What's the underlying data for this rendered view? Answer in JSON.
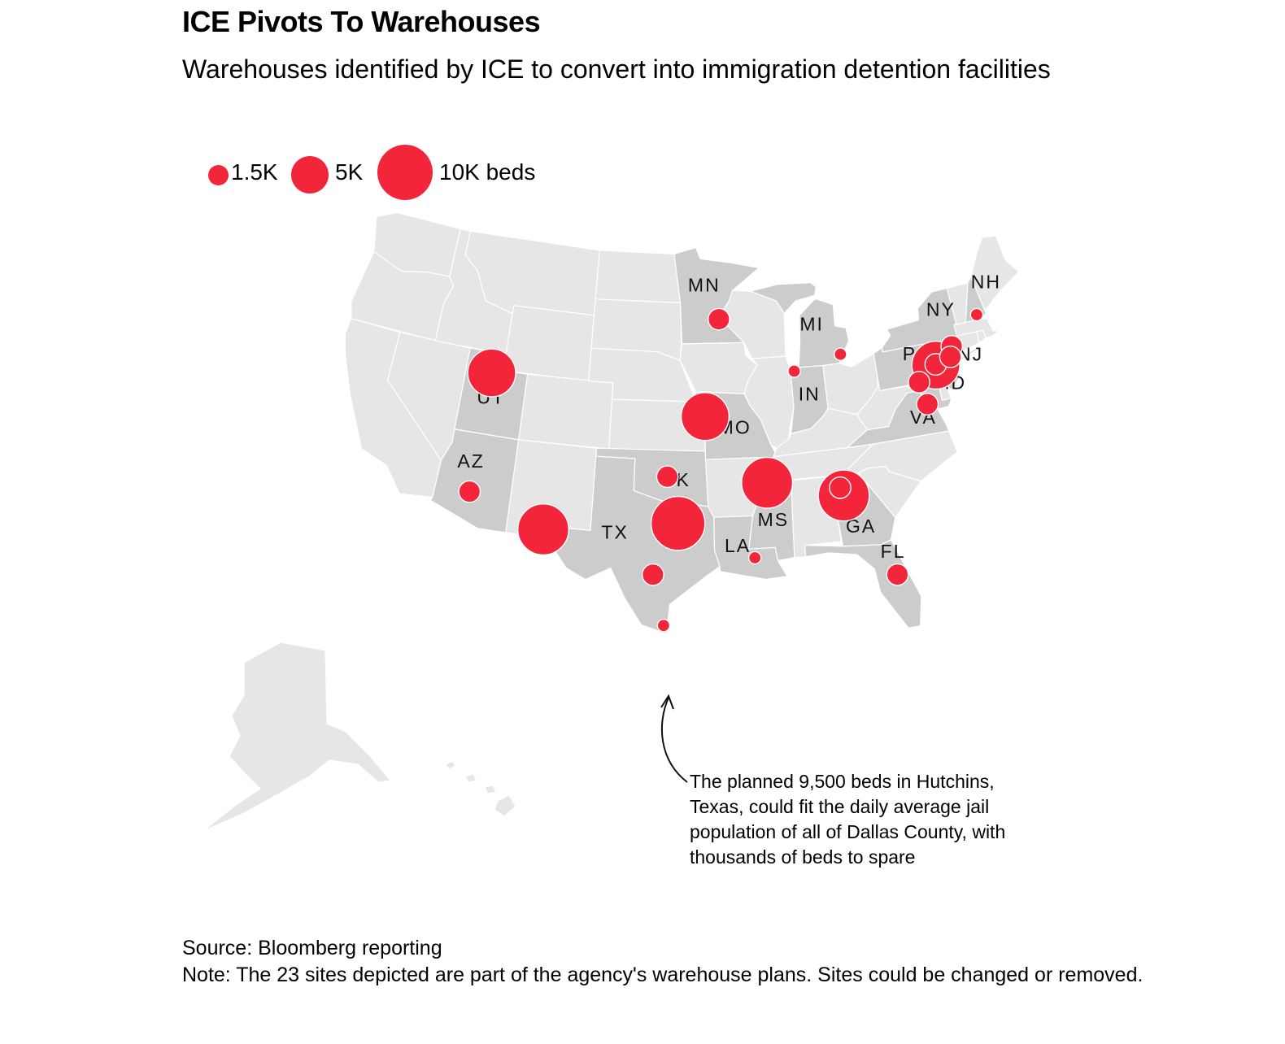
{
  "title": "ICE Pivots To Warehouses",
  "subtitle": "Warehouses identified by ICE to convert into immigration detention facilities",
  "legend": {
    "items": [
      {
        "label": "1.5K",
        "beds": 1500
      },
      {
        "label": "5K",
        "beds": 5000
      },
      {
        "label": "10K beds",
        "beds": 10000
      }
    ]
  },
  "colors": {
    "site": "#f2253a",
    "highlight_state": "#cccccc",
    "other_state": "#e6e6e6",
    "border": "#ffffff"
  },
  "highlighted_states": [
    "MN",
    "UT",
    "AZ",
    "TX",
    "OK",
    "MO",
    "LA",
    "MS",
    "GA",
    "FL",
    "IN",
    "MI",
    "PA",
    "NY",
    "NJ",
    "MD",
    "VA",
    "NH"
  ],
  "state_labels": [
    {
      "code": "MN",
      "text": "MN"
    },
    {
      "code": "UT",
      "text": "UT"
    },
    {
      "code": "AZ",
      "text": "AZ"
    },
    {
      "code": "TX",
      "text": "TX"
    },
    {
      "code": "OK",
      "text": "OK"
    },
    {
      "code": "MO",
      "text": "MO"
    },
    {
      "code": "LA",
      "text": "LA"
    },
    {
      "code": "MS",
      "text": "MS"
    },
    {
      "code": "GA",
      "text": "GA"
    },
    {
      "code": "FL",
      "text": "FL"
    },
    {
      "code": "IN",
      "text": "IN"
    },
    {
      "code": "MI",
      "text": "MI"
    },
    {
      "code": "PA",
      "text": "PA"
    },
    {
      "code": "NY",
      "text": "NY"
    },
    {
      "code": "NJ",
      "text": "NJ"
    },
    {
      "code": "MD",
      "text": "MD"
    },
    {
      "code": "VA",
      "text": "VA"
    },
    {
      "code": "NH",
      "text": "NH"
    }
  ],
  "sites": [
    {
      "state": "UT",
      "lon": -111.95,
      "lat": 40.75,
      "beds": 7500
    },
    {
      "state": "AZ",
      "lon": -112.1,
      "lat": 33.45,
      "beds": 1500
    },
    {
      "state": "TX",
      "lon": -106.4,
      "lat": 31.8,
      "beds": 8500
    },
    {
      "state": "TX",
      "lon": -96.67,
      "lat": 32.64,
      "beds": 9500
    },
    {
      "state": "TX",
      "lon": -98.4,
      "lat": 29.5,
      "beds": 1500
    },
    {
      "state": "TX",
      "lon": -97.6,
      "lat": 26.4,
      "beds": 500
    },
    {
      "state": "OK",
      "lon": -97.5,
      "lat": 35.46,
      "beds": 1500
    },
    {
      "state": "MO",
      "lon": -94.58,
      "lat": 39.1,
      "beds": 7500
    },
    {
      "state": "MN",
      "lon": -93.27,
      "lat": 44.98,
      "beds": 1500
    },
    {
      "state": "LA",
      "lon": -91.2,
      "lat": 30.45,
      "beds": 500
    },
    {
      "state": "MS",
      "lon": -90.0,
      "lat": 34.95,
      "beds": 8500
    },
    {
      "state": "GA",
      "lon": -84.4,
      "lat": 33.75,
      "beds": 8500
    },
    {
      "state": "GA",
      "lon": -84.6,
      "lat": 34.25,
      "beds": 1500
    },
    {
      "state": "FL",
      "lon": -81.38,
      "lat": 28.54,
      "beds": 1500
    },
    {
      "state": "IN",
      "lon": -87.2,
      "lat": 41.55,
      "beds": 500
    },
    {
      "state": "MI",
      "lon": -83.25,
      "lat": 42.25,
      "beds": 500
    },
    {
      "state": "PA",
      "lon": -75.7,
      "lat": 40.6,
      "beds": 7500
    },
    {
      "state": "PA",
      "lon": -75.7,
      "lat": 40.65,
      "beds": 1500
    },
    {
      "state": "PA",
      "lon": -77.3,
      "lat": 39.8,
      "beds": 1500
    },
    {
      "state": "NY",
      "lon": -74.1,
      "lat": 41.5,
      "beds": 1500
    },
    {
      "state": "NJ",
      "lon": -74.4,
      "lat": 40.9,
      "beds": 1500
    },
    {
      "state": "VA",
      "lon": -77.0,
      "lat": 38.4,
      "beds": 1500
    },
    {
      "state": "NH",
      "lon": -71.45,
      "lat": 43.0,
      "beds": 500
    }
  ],
  "annotation": {
    "text": "The planned 9,500 beds in Hutchins, Texas, could fit the daily average jail population of all of Dallas County, with thousands of beds to spare"
  },
  "footer": {
    "source": "Source: Bloomberg reporting",
    "note": "Note: The 23 sites depicted are part of the agency's warehouse plans. Sites could be changed or removed."
  }
}
